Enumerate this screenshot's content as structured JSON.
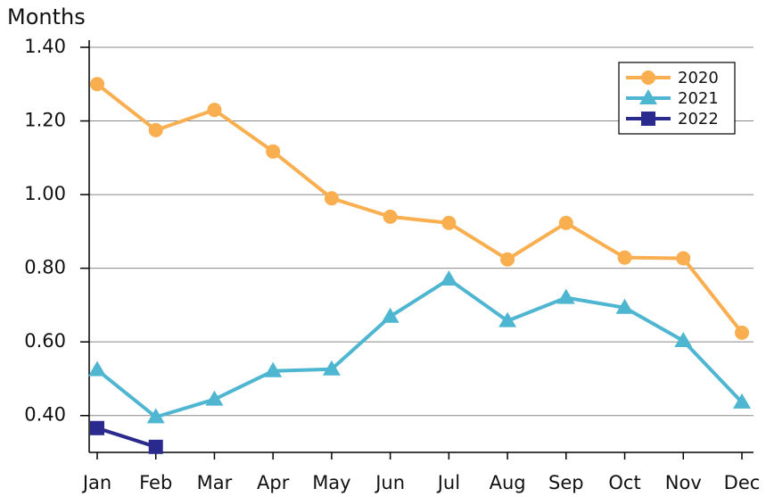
{
  "chart_data": {
    "type": "line",
    "y_label": "Months",
    "categories": [
      "Jan",
      "Feb",
      "Mar",
      "Apr",
      "May",
      "Jun",
      "Jul",
      "Aug",
      "Sep",
      "Oct",
      "Nov",
      "Dec"
    ],
    "series": [
      {
        "name": "2020",
        "color": "#f9ae4f",
        "marker": "circle",
        "values": [
          1.3,
          1.175,
          1.23,
          1.117,
          0.99,
          0.94,
          0.923,
          0.824,
          0.923,
          0.829,
          0.827,
          0.625
        ]
      },
      {
        "name": "2021",
        "color": "#4fb6d2",
        "marker": "triangle",
        "values": [
          0.524,
          0.396,
          0.444,
          0.521,
          0.526,
          0.669,
          0.77,
          0.657,
          0.72,
          0.693,
          0.603,
          0.436
        ]
      },
      {
        "name": "2022",
        "color": "#2a2a8e",
        "marker": "square",
        "values": [
          0.366,
          0.315,
          null,
          null,
          null,
          null,
          null,
          null,
          null,
          null,
          null,
          null
        ]
      }
    ],
    "ylim": [
      0.3,
      1.4
    ],
    "yticks": [
      {
        "value": 0.4,
        "label": "0.40"
      },
      {
        "value": 0.6,
        "label": "0.60"
      },
      {
        "value": 0.8,
        "label": "0.80"
      },
      {
        "value": 1.0,
        "label": "1.00"
      },
      {
        "value": 1.2,
        "label": "1.20"
      },
      {
        "value": 1.4,
        "label": "1.40"
      }
    ],
    "grid": true,
    "legend": "top-right"
  }
}
